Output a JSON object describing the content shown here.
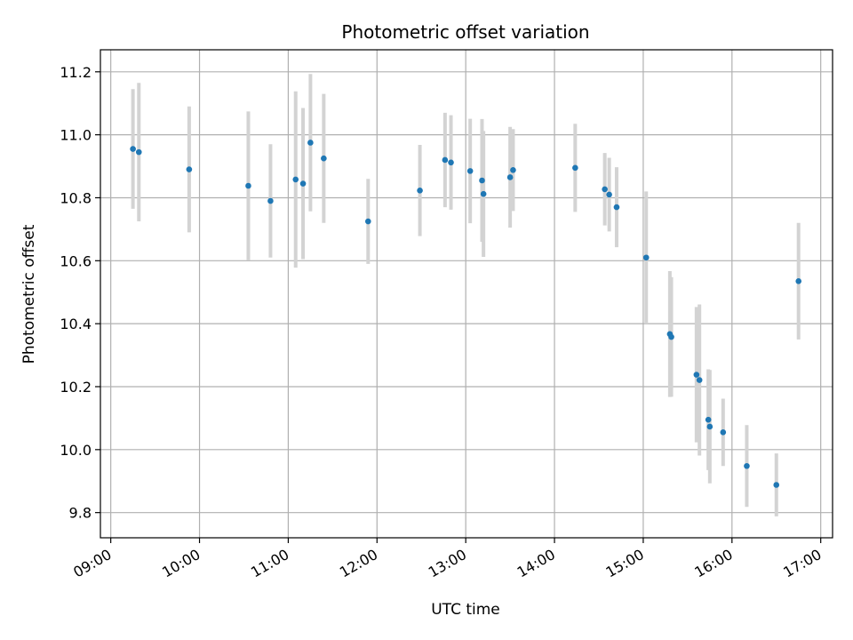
{
  "chart_data": {
    "type": "scatter",
    "title": "Photometric offset variation",
    "xlabel": "UTC time",
    "ylabel": "Photometric offset",
    "grid": true,
    "xlim": [
      "08:53",
      "17:08"
    ],
    "ylim": [
      9.72,
      11.27
    ],
    "x_ticks": [
      "09:00",
      "10:00",
      "11:00",
      "12:00",
      "13:00",
      "14:00",
      "15:00",
      "16:00",
      "17:00"
    ],
    "y_ticks": [
      "9.8",
      "10.0",
      "10.2",
      "10.4",
      "10.6",
      "10.8",
      "11.0",
      "11.2"
    ],
    "colors": {
      "point": "#1f77b4",
      "errorbar": "#d3d3d3",
      "grid": "#b0b0b0"
    },
    "points": [
      {
        "x": "09:15",
        "y": 10.955,
        "err": 0.19
      },
      {
        "x": "09:19",
        "y": 10.945,
        "err": 0.22
      },
      {
        "x": "09:53",
        "y": 10.89,
        "err": 0.2
      },
      {
        "x": "10:33",
        "y": 10.838,
        "err": 0.236
      },
      {
        "x": "10:48",
        "y": 10.79,
        "err": 0.18
      },
      {
        "x": "11:05",
        "y": 10.858,
        "err": 0.28
      },
      {
        "x": "11:10",
        "y": 10.845,
        "err": 0.24
      },
      {
        "x": "11:15",
        "y": 10.975,
        "err": 0.218
      },
      {
        "x": "11:24",
        "y": 10.925,
        "err": 0.205
      },
      {
        "x": "11:54",
        "y": 10.725,
        "err": 0.135
      },
      {
        "x": "12:29",
        "y": 10.823,
        "err": 0.145
      },
      {
        "x": "12:46",
        "y": 10.92,
        "err": 0.15
      },
      {
        "x": "12:50",
        "y": 10.912,
        "err": 0.15
      },
      {
        "x": "13:03",
        "y": 10.885,
        "err": 0.166
      },
      {
        "x": "13:11",
        "y": 10.855,
        "err": 0.195
      },
      {
        "x": "13:12",
        "y": 10.812,
        "err": 0.2
      },
      {
        "x": "13:30",
        "y": 10.865,
        "err": 0.16
      },
      {
        "x": "13:32",
        "y": 10.888,
        "err": 0.13
      },
      {
        "x": "14:14",
        "y": 10.895,
        "err": 0.14
      },
      {
        "x": "14:34",
        "y": 10.827,
        "err": 0.115
      },
      {
        "x": "14:37",
        "y": 10.81,
        "err": 0.117
      },
      {
        "x": "14:42",
        "y": 10.77,
        "err": 0.127
      },
      {
        "x": "15:02",
        "y": 10.61,
        "err": 0.21
      },
      {
        "x": "15:18",
        "y": 10.367,
        "err": 0.2
      },
      {
        "x": "15:19",
        "y": 10.358,
        "err": 0.19
      },
      {
        "x": "15:36",
        "y": 10.238,
        "err": 0.215
      },
      {
        "x": "15:38",
        "y": 10.221,
        "err": 0.24
      },
      {
        "x": "15:44",
        "y": 10.095,
        "err": 0.16
      },
      {
        "x": "15:45",
        "y": 10.073,
        "err": 0.18
      },
      {
        "x": "15:54",
        "y": 10.055,
        "err": 0.107
      },
      {
        "x": "16:10",
        "y": 9.948,
        "err": 0.13
      },
      {
        "x": "16:30",
        "y": 9.888,
        "err": 0.1
      },
      {
        "x": "16:45",
        "y": 10.535,
        "err": 0.185
      }
    ]
  }
}
